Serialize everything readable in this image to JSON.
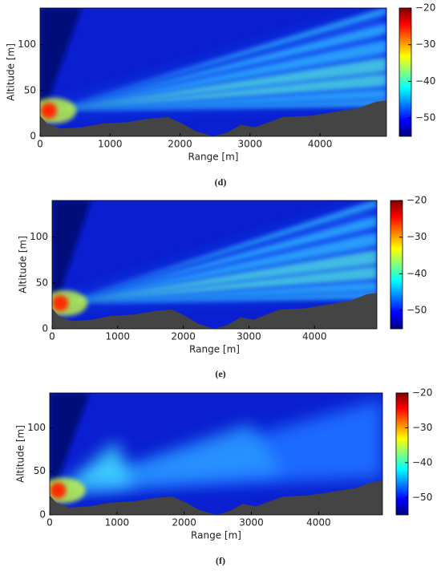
{
  "chart_data": [
    {
      "type": "heatmap",
      "caption": "(d)",
      "xlabel": "Range [m]",
      "ylabel": "Altitude [m]",
      "colormap": "jet",
      "xlim": [
        0,
        4950
      ],
      "ylim": [
        0,
        140
      ],
      "xticks": [
        0,
        1000,
        2000,
        3000,
        4000
      ],
      "yticks": [
        0,
        50,
        100
      ],
      "clim": [
        -55,
        -20
      ],
      "cticks": [
        {
          "value": -20,
          "label": "−20"
        },
        {
          "value": -30,
          "label": "−30"
        },
        {
          "value": -40,
          "label": "−40"
        },
        {
          "value": -50,
          "label": "−50"
        }
      ]
    },
    {
      "type": "heatmap",
      "caption": "(e)",
      "xlabel": "Range [m]",
      "ylabel": "Altitude [m]",
      "colormap": "jet",
      "xlim": [
        0,
        4950
      ],
      "ylim": [
        0,
        140
      ],
      "xticks": [
        0,
        1000,
        2000,
        3000,
        4000
      ],
      "yticks": [
        0,
        50,
        100
      ],
      "clim": [
        -55,
        -20
      ],
      "cticks": [
        {
          "value": -20,
          "label": "−20"
        },
        {
          "value": -30,
          "label": "−30"
        },
        {
          "value": -40,
          "label": "−40"
        },
        {
          "value": -50,
          "label": "−50"
        }
      ]
    },
    {
      "type": "heatmap",
      "caption": "(f)",
      "xlabel": "Range [m]",
      "ylabel": "Altitude [m]",
      "colormap": "jet",
      "xlim": [
        0,
        4950
      ],
      "ylim": [
        0,
        140
      ],
      "xticks": [
        0,
        1000,
        2000,
        3000,
        4000
      ],
      "yticks": [
        0,
        50,
        100
      ],
      "clim": [
        -55,
        -20
      ],
      "cticks": [
        {
          "value": -20,
          "label": "−20"
        },
        {
          "value": -30,
          "label": "−30"
        },
        {
          "value": -40,
          "label": "−40"
        },
        {
          "value": -50,
          "label": "−50"
        }
      ]
    }
  ]
}
